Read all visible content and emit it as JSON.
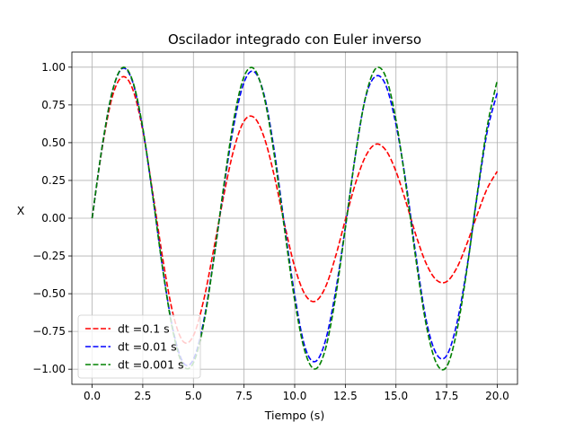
{
  "chart_data": {
    "type": "line",
    "title": "Oscilador integrado con Euler inverso",
    "xlabel": "Tiempo (s)",
    "ylabel": "X",
    "xlim": [
      -1.0,
      21.0
    ],
    "ylim": [
      -1.1,
      1.1
    ],
    "grid": true,
    "legend_position": "lower-left",
    "xticks": [
      0.0,
      2.5,
      5.0,
      7.5,
      10.0,
      12.5,
      15.0,
      17.5,
      20.0
    ],
    "xtick_labels": [
      "0.0",
      "2.5",
      "5.0",
      "7.5",
      "10.0",
      "12.5",
      "15.0",
      "17.5",
      "20.0"
    ],
    "yticks": [
      -1.0,
      -0.75,
      -0.5,
      -0.25,
      0.0,
      0.25,
      0.5,
      0.75,
      1.0
    ],
    "ytick_labels": [
      "−1.00",
      "−0.75",
      "−0.50",
      "−0.25",
      "0.00",
      "0.25",
      "0.50",
      "0.75",
      "1.00"
    ],
    "x": [
      0.0,
      0.5,
      1.0,
      1.5,
      2.0,
      2.5,
      3.0,
      3.5,
      4.0,
      4.5,
      5.0,
      5.5,
      6.0,
      6.5,
      7.0,
      7.5,
      8.0,
      8.5,
      9.0,
      9.5,
      10.0,
      10.5,
      11.0,
      11.5,
      12.0,
      12.5,
      13.0,
      13.5,
      14.0,
      14.5,
      15.0,
      15.5,
      16.0,
      16.5,
      17.0,
      17.5,
      18.0,
      18.5,
      19.0,
      19.5,
      20.0
    ],
    "series": [
      {
        "name": "dt =0.1 s",
        "color": "#ff0000",
        "values": [
          0.0,
          0.469,
          0.806,
          0.936,
          0.855,
          0.581,
          0.162,
          -0.279,
          -0.637,
          -0.817,
          -0.778,
          -0.547,
          -0.208,
          0.152,
          0.458,
          0.643,
          0.667,
          0.532,
          0.276,
          -0.04,
          -0.322,
          -0.503,
          -0.551,
          -0.462,
          -0.262,
          -0.011,
          0.23,
          0.41,
          0.49,
          0.45,
          0.31,
          0.105,
          -0.118,
          -0.303,
          -0.41,
          -0.42,
          -0.33,
          -0.17,
          0.02,
          0.195,
          0.31
        ]
      },
      {
        "name": "dt =0.01 s",
        "color": "#0000ff",
        "values": [
          0.0,
          0.477,
          0.84,
          0.992,
          0.902,
          0.592,
          0.139,
          -0.347,
          -0.743,
          -0.957,
          -0.935,
          -0.687,
          -0.273,
          0.2,
          0.62,
          0.9,
          0.97,
          0.812,
          0.44,
          -0.05,
          -0.51,
          -0.85,
          -0.95,
          -0.82,
          -0.5,
          -0.06,
          0.42,
          0.8,
          0.94,
          0.88,
          0.62,
          0.23,
          -0.26,
          -0.68,
          -0.9,
          -0.91,
          -0.7,
          -0.33,
          0.14,
          0.57,
          0.83
        ]
      },
      {
        "name": "dt =0.001 s",
        "color": "#008000",
        "values": [
          0.0,
          0.479,
          0.841,
          0.997,
          0.909,
          0.598,
          0.141,
          -0.351,
          -0.756,
          -0.977,
          -0.958,
          -0.705,
          -0.279,
          0.215,
          0.657,
          0.938,
          0.989,
          0.798,
          0.412,
          -0.075,
          -0.544,
          -0.88,
          -0.999,
          -0.875,
          -0.537,
          -0.066,
          0.42,
          0.803,
          0.991,
          0.935,
          0.65,
          0.21,
          -0.287,
          -0.712,
          -0.961,
          -0.984,
          -0.751,
          -0.342,
          0.15,
          0.603,
          0.913
        ]
      }
    ]
  }
}
